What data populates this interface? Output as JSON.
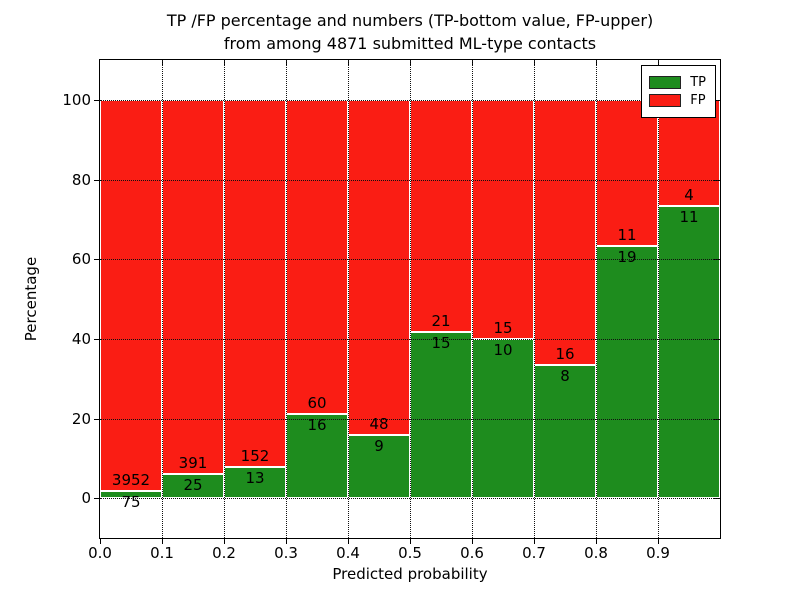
{
  "chart_data": {
    "type": "bar",
    "stacked": true,
    "title_line1": "TP /FP percentage and numbers (TP-bottom value, FP-upper)",
    "title_line2": "from among 4871 submitted ML-type contacts",
    "xlabel": "Predicted probability",
    "ylabel": "Percentage",
    "total_submitted": 4871,
    "categories": [
      "0.0-0.1",
      "0.1-0.2",
      "0.2-0.3",
      "0.3-0.4",
      "0.4-0.5",
      "0.5-0.6",
      "0.6-0.7",
      "0.7-0.8",
      "0.8-0.9",
      "0.9-1.0"
    ],
    "series": [
      {
        "name": "TP",
        "color": "#1e8c1e",
        "counts": [
          75,
          25,
          13,
          16,
          9,
          15,
          10,
          8,
          19,
          11
        ],
        "percent": [
          1.86,
          6.01,
          7.88,
          21.05,
          15.79,
          41.67,
          40.0,
          33.33,
          63.33,
          73.33
        ]
      },
      {
        "name": "FP",
        "color": "#fa1d14",
        "counts": [
          3952,
          391,
          152,
          60,
          48,
          21,
          15,
          16,
          11,
          4
        ],
        "percent": [
          98.14,
          93.99,
          92.12,
          78.95,
          84.21,
          58.33,
          60.0,
          66.67,
          36.67,
          26.67
        ]
      }
    ],
    "bar_edge_color": "#ffffff",
    "xtick_labels": [
      "0.0",
      "0.1",
      "0.2",
      "0.3",
      "0.4",
      "0.5",
      "0.6",
      "0.7",
      "0.8",
      "0.9"
    ],
    "xtick_values": [
      0.0,
      0.1,
      0.2,
      0.3,
      0.4,
      0.5,
      0.6,
      0.7,
      0.8,
      0.9
    ],
    "ytick_labels": [
      "0",
      "20",
      "40",
      "60",
      "80",
      "100"
    ],
    "ytick_values": [
      0,
      20,
      40,
      60,
      80,
      100
    ],
    "xlim": [
      0.0,
      1.0
    ],
    "ylim": [
      -10,
      110
    ],
    "grid": "dotted",
    "legend": {
      "position": "upper right",
      "entries": [
        {
          "label": "TP",
          "color": "#1e8c1e"
        },
        {
          "label": "FP",
          "color": "#fa1d14"
        }
      ]
    }
  }
}
